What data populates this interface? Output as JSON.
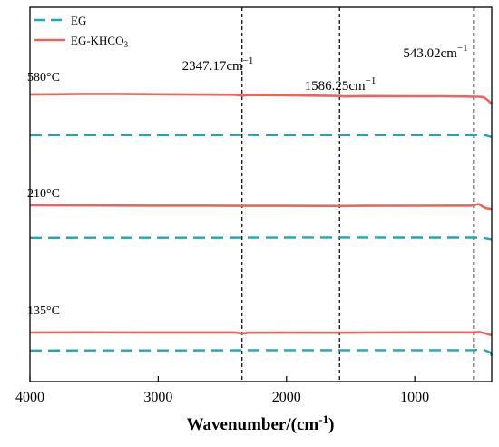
{
  "chart_data": {
    "type": "line",
    "xlabel": "Wavenumber/(cm",
    "xlabel_sup": "-1",
    "xlabel_close": ")",
    "x_ticks": [
      4000,
      3000,
      2000,
      1000
    ],
    "x_tick_labels": [
      "4000",
      "3000",
      "2000",
      "1000"
    ],
    "xlim": [
      4000,
      400
    ],
    "y_axis": "none",
    "legend": {
      "placement": "top-left",
      "entries": [
        {
          "label": "EG",
          "style": "dashed",
          "color": "#1fa7b7"
        },
        {
          "label": "EG-KHCO",
          "sub": "3",
          "style": "solid",
          "color": "#e8675c"
        }
      ]
    },
    "reference_lines": [
      {
        "x": 2347.17,
        "label": "2347.17cm",
        "sup": "−1",
        "color": "#222222"
      },
      {
        "x": 1586.25,
        "label": "1586.25cm",
        "sup": "−1",
        "color": "#222222"
      },
      {
        "x": 543.02,
        "label": "543.02cm",
        "sup": "−1",
        "color": "#888888"
      }
    ],
    "groups": [
      {
        "temperature": "580°C",
        "series": [
          {
            "name": "EG-KHCO3",
            "color": "#e8675c",
            "style": "solid",
            "points": [
              [
                4000,
                0.88
              ],
              [
                3800,
                0.89
              ],
              [
                3600,
                0.91
              ],
              [
                3400,
                0.91
              ],
              [
                3000,
                0.89
              ],
              [
                2600,
                0.86
              ],
              [
                2400,
                0.85
              ],
              [
                2347,
                0.78
              ],
              [
                2300,
                0.84
              ],
              [
                2000,
                0.82
              ],
              [
                1700,
                0.79
              ],
              [
                1586,
                0.77
              ],
              [
                1550,
                0.74
              ],
              [
                1400,
                0.76
              ],
              [
                1000,
                0.75
              ],
              [
                800,
                0.75
              ],
              [
                600,
                0.73
              ],
              [
                500,
                0.72
              ],
              [
                460,
                0.68
              ],
              [
                420,
                0.4
              ],
              [
                400,
                0.2
              ]
            ]
          },
          {
            "name": "EG",
            "color": "#1fa7b7",
            "style": "dashed",
            "points": [
              [
                4000,
                0.52
              ],
              [
                3500,
                0.53
              ],
              [
                3000,
                0.52
              ],
              [
                2600,
                0.52
              ],
              [
                2347,
                0.55
              ],
              [
                2000,
                0.53
              ],
              [
                1586,
                0.54
              ],
              [
                1200,
                0.54
              ],
              [
                800,
                0.53
              ],
              [
                600,
                0.53
              ],
              [
                500,
                0.55
              ],
              [
                470,
                0.58
              ],
              [
                440,
                0.45
              ],
              [
                410,
                0.25
              ],
              [
                400,
                0.15
              ]
            ]
          }
        ]
      },
      {
        "temperature": "210°C",
        "series": [
          {
            "name": "EG-KHCO3",
            "color": "#e8675c",
            "style": "solid",
            "points": [
              [
                4000,
                0.84
              ],
              [
                3500,
                0.82
              ],
              [
                3000,
                0.8
              ],
              [
                2600,
                0.8
              ],
              [
                2347,
                0.78
              ],
              [
                2000,
                0.78
              ],
              [
                1586,
                0.77
              ],
              [
                1400,
                0.78
              ],
              [
                1000,
                0.79
              ],
              [
                700,
                0.8
              ],
              [
                560,
                0.8
              ],
              [
                500,
                0.96
              ],
              [
                470,
                0.7
              ],
              [
                440,
                0.55
              ],
              [
                400,
                0.48
              ]
            ]
          },
          {
            "name": "EG",
            "color": "#1fa7b7",
            "style": "dashed",
            "points": [
              [
                4000,
                0.37
              ],
              [
                3500,
                0.38
              ],
              [
                3000,
                0.38
              ],
              [
                2600,
                0.39
              ],
              [
                2347,
                0.4
              ],
              [
                2000,
                0.42
              ],
              [
                1586,
                0.43
              ],
              [
                1200,
                0.42
              ],
              [
                800,
                0.42
              ],
              [
                600,
                0.42
              ],
              [
                500,
                0.4
              ],
              [
                460,
                0.36
              ],
              [
                430,
                0.2
              ],
              [
                400,
                0.1
              ]
            ]
          }
        ]
      },
      {
        "temperature": "135°C",
        "series": [
          {
            "name": "EG-KHCO3",
            "color": "#e8675c",
            "style": "solid",
            "points": [
              [
                4000,
                0.9
              ],
              [
                3600,
                0.92
              ],
              [
                3200,
                0.91
              ],
              [
                2800,
                0.91
              ],
              [
                2400,
                0.91
              ],
              [
                2347,
                0.78
              ],
              [
                2300,
                0.88
              ],
              [
                2000,
                0.89
              ],
              [
                1586,
                0.88
              ],
              [
                1400,
                0.9
              ],
              [
                1000,
                0.92
              ],
              [
                700,
                0.92
              ],
              [
                560,
                0.92
              ],
              [
                500,
                0.96
              ],
              [
                460,
                0.85
              ],
              [
                430,
                0.72
              ],
              [
                400,
                0.6
              ]
            ]
          },
          {
            "name": "EG",
            "color": "#1fa7b7",
            "style": "dashed",
            "points": [
              [
                4000,
                0.36
              ],
              [
                3500,
                0.38
              ],
              [
                3000,
                0.38
              ],
              [
                2600,
                0.4
              ],
              [
                2347,
                0.41
              ],
              [
                2000,
                0.44
              ],
              [
                1586,
                0.44
              ],
              [
                1200,
                0.44
              ],
              [
                800,
                0.43
              ],
              [
                600,
                0.43
              ],
              [
                540,
                0.45
              ],
              [
                500,
                0.5
              ],
              [
                470,
                0.55
              ],
              [
                440,
                0.3
              ],
              [
                410,
                0.0
              ],
              [
                400,
                -0.6
              ]
            ]
          }
        ]
      }
    ]
  }
}
